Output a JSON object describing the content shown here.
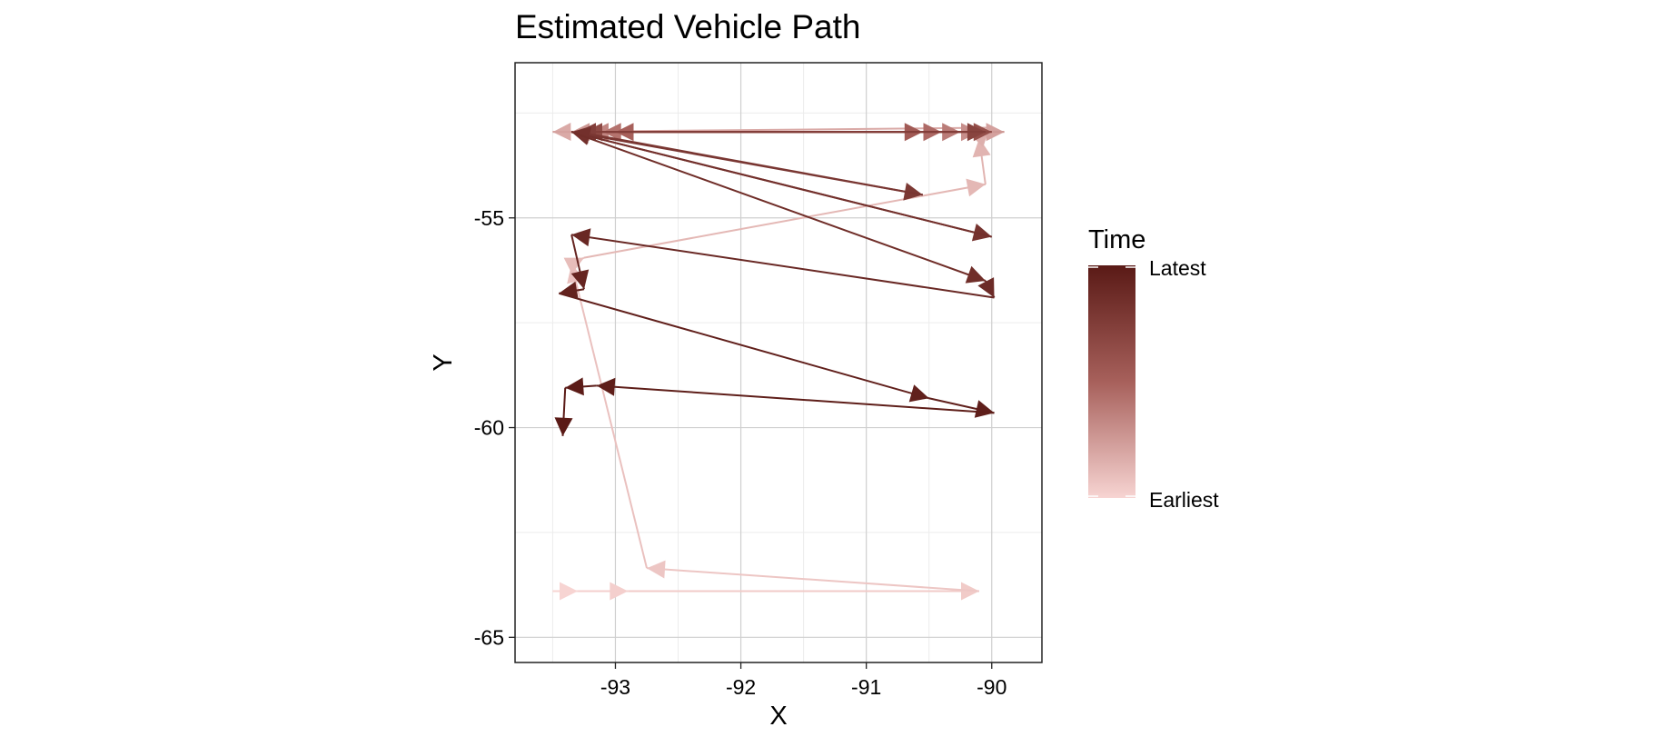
{
  "chart_data": {
    "type": "line",
    "title": "Estimated Vehicle Path",
    "xlabel": "X",
    "ylabel": "Y",
    "xlim": [
      -93.8,
      -89.6
    ],
    "ylim": [
      -65.6,
      -51.3
    ],
    "xticks": [
      -93,
      -92,
      -91,
      -90
    ],
    "xtick_labels": [
      "-93",
      "-92",
      "-91",
      "-90"
    ],
    "yticks": [
      -55,
      -60,
      -65
    ],
    "ytick_labels": [
      "-55",
      "-60",
      "-65"
    ],
    "grid": true,
    "legend": {
      "title": "Time",
      "labels": [
        "Latest",
        "Earliest"
      ],
      "placement": "right",
      "colors": {
        "latest": "#5a1a16",
        "earliest": "#f7d4d2"
      }
    },
    "segments": [
      {
        "x0": -93.5,
        "y0": -63.9,
        "x1": -93.3,
        "y1": -63.9,
        "t": 0.0
      },
      {
        "x0": -93.3,
        "y0": -63.9,
        "x1": -92.9,
        "y1": -63.9,
        "t": 0.02
      },
      {
        "x0": -92.9,
        "y0": -63.9,
        "x1": -90.1,
        "y1": -63.9,
        "t": 0.04
      },
      {
        "x0": -90.1,
        "y0": -63.9,
        "x1": -92.75,
        "y1": -63.35,
        "t": 0.06
      },
      {
        "x0": -92.75,
        "y0": -63.35,
        "x1": -93.35,
        "y1": -56.1,
        "t": 0.08
      },
      {
        "x0": -93.35,
        "y0": -56.1,
        "x1": -93.25,
        "y1": -55.95,
        "t": 0.1
      },
      {
        "x0": -93.25,
        "y0": -55.95,
        "x1": -90.05,
        "y1": -54.2,
        "t": 0.12
      },
      {
        "x0": -90.05,
        "y0": -54.2,
        "x1": -90.1,
        "y1": -53.1,
        "t": 0.14
      },
      {
        "x0": -90.1,
        "y0": -53.1,
        "x1": -90.02,
        "y1": -52.85,
        "t": 0.16
      },
      {
        "x0": -90.02,
        "y0": -52.85,
        "x1": -93.5,
        "y1": -52.95,
        "t": 0.18
      },
      {
        "x0": -93.5,
        "y0": -52.95,
        "x1": -89.9,
        "y1": -52.95,
        "t": 0.22
      },
      {
        "x0": -89.9,
        "y0": -52.95,
        "x1": -93.35,
        "y1": -52.95,
        "t": 0.26
      },
      {
        "x0": -93.35,
        "y0": -52.95,
        "x1": -90.1,
        "y1": -52.95,
        "t": 0.3
      },
      {
        "x0": -90.1,
        "y0": -52.95,
        "x1": -93.2,
        "y1": -52.95,
        "t": 0.34
      },
      {
        "x0": -93.2,
        "y0": -52.95,
        "x1": -90.25,
        "y1": -52.95,
        "t": 0.38
      },
      {
        "x0": -90.25,
        "y0": -52.95,
        "x1": -93.1,
        "y1": -52.95,
        "t": 0.42
      },
      {
        "x0": -93.1,
        "y0": -52.95,
        "x1": -90.4,
        "y1": -52.95,
        "t": 0.46
      },
      {
        "x0": -90.4,
        "y0": -52.95,
        "x1": -93.0,
        "y1": -52.95,
        "t": 0.5
      },
      {
        "x0": -93.0,
        "y0": -52.95,
        "x1": -90.55,
        "y1": -52.95,
        "t": 0.54
      },
      {
        "x0": -90.55,
        "y0": -52.95,
        "x1": -93.3,
        "y1": -52.95,
        "t": 0.58
      },
      {
        "x0": -93.3,
        "y0": -52.95,
        "x1": -90.0,
        "y1": -52.95,
        "t": 0.62
      },
      {
        "x0": -90.0,
        "y0": -52.95,
        "x1": -93.25,
        "y1": -52.95,
        "t": 0.66
      },
      {
        "x0": -93.25,
        "y0": -52.95,
        "x1": -90.05,
        "y1": -52.95,
        "t": 0.7
      },
      {
        "x0": -90.05,
        "y0": -52.95,
        "x1": -93.3,
        "y1": -52.95,
        "t": 0.74
      },
      {
        "x0": -93.3,
        "y0": -52.95,
        "x1": -90.55,
        "y1": -54.45,
        "t": 0.78
      },
      {
        "x0": -90.55,
        "y0": -54.45,
        "x1": -93.35,
        "y1": -52.95,
        "t": 0.8
      },
      {
        "x0": -93.35,
        "y0": -52.95,
        "x1": -90.0,
        "y1": -55.45,
        "t": 0.82
      },
      {
        "x0": -90.0,
        "y0": -55.45,
        "x1": -93.35,
        "y1": -52.95,
        "t": 0.84
      },
      {
        "x0": -93.35,
        "y0": -52.95,
        "x1": -90.05,
        "y1": -56.5,
        "t": 0.86
      },
      {
        "x0": -90.05,
        "y0": -56.5,
        "x1": -89.98,
        "y1": -56.9,
        "t": 0.88
      },
      {
        "x0": -89.98,
        "y0": -56.9,
        "x1": -93.35,
        "y1": -55.4,
        "t": 0.9
      },
      {
        "x0": -93.35,
        "y0": -55.4,
        "x1": -93.25,
        "y1": -56.7,
        "t": 0.92
      },
      {
        "x0": -93.25,
        "y0": -56.7,
        "x1": -93.45,
        "y1": -56.8,
        "t": 0.94
      },
      {
        "x0": -93.45,
        "y0": -56.8,
        "x1": -90.5,
        "y1": -59.3,
        "t": 0.955
      },
      {
        "x0": -90.5,
        "y0": -59.3,
        "x1": -89.98,
        "y1": -59.65,
        "t": 0.965
      },
      {
        "x0": -89.98,
        "y0": -59.65,
        "x1": -93.15,
        "y1": -59.0,
        "t": 0.975
      },
      {
        "x0": -93.15,
        "y0": -59.0,
        "x1": -93.4,
        "y1": -59.05,
        "t": 0.985
      },
      {
        "x0": -93.4,
        "y0": -59.05,
        "x1": -93.42,
        "y1": -60.2,
        "t": 1.0
      }
    ]
  }
}
